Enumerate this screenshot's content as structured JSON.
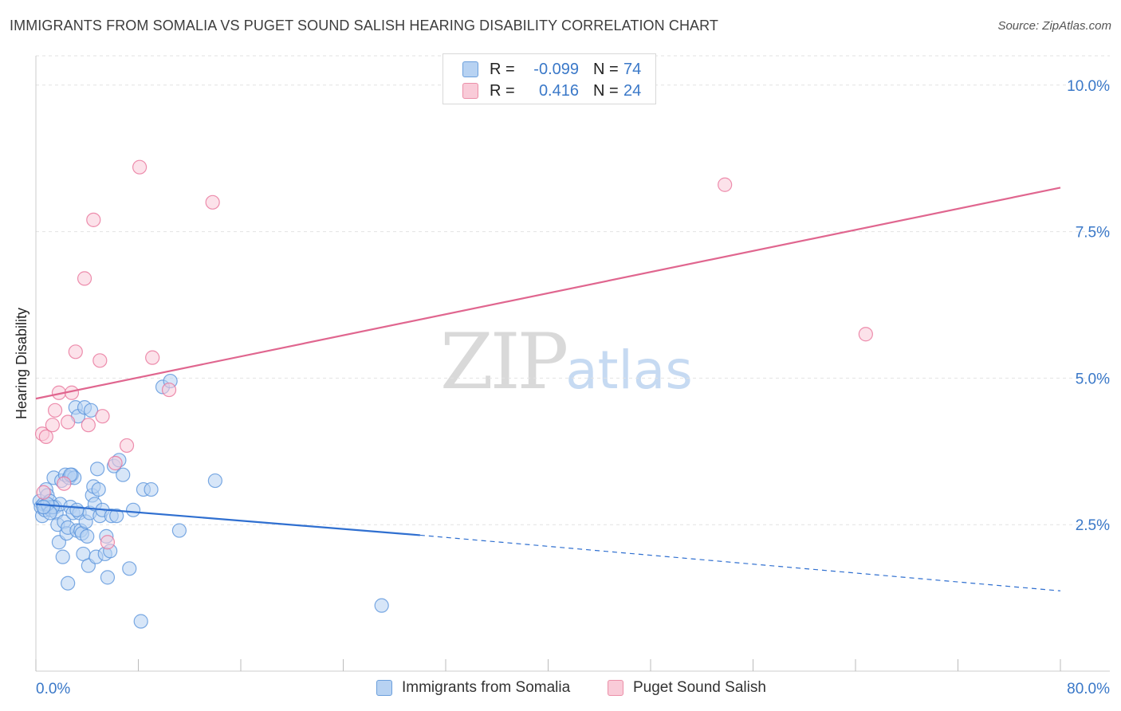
{
  "title": "IMMIGRANTS FROM SOMALIA VS PUGET SOUND SALISH HEARING DISABILITY CORRELATION CHART",
  "source": "Source: ZipAtlas.com",
  "watermark": {
    "zip": "ZIP",
    "atlas": "atlas"
  },
  "legend_top": {
    "rows": [
      {
        "r_label": "R =",
        "r_value": "-0.099",
        "n_label": "N =",
        "n_value": "74"
      },
      {
        "r_label": "R =",
        "r_value": "0.416",
        "n_label": "N =",
        "n_value": "24"
      }
    ]
  },
  "legend_bottom": [
    "Immigrants from Somalia",
    "Puget Sound Salish"
  ],
  "chart_data": {
    "type": "scatter",
    "title": "IMMIGRANTS FROM SOMALIA VS PUGET SOUND SALISH HEARING DISABILITY CORRELATION CHART",
    "xlabel": "",
    "ylabel": "Hearing Disability",
    "xlim": [
      0,
      80
    ],
    "ylim": [
      0,
      10.5
    ],
    "x_tick_labels": [
      "0.0%",
      "80.0%"
    ],
    "y_ticks": [
      2.5,
      5.0,
      7.5,
      10.0
    ],
    "y_tick_labels": [
      "2.5%",
      "5.0%",
      "7.5%",
      "10.0%"
    ],
    "grid": true,
    "legend_position": "top-center",
    "colors": {
      "blue": "#5b95dc",
      "blue_fill": "#b7d2f2",
      "pink": "#e8739a",
      "pink_fill": "#f9cbd8"
    },
    "series": [
      {
        "name": "Immigrants from Somalia",
        "color": "#5b95dc",
        "trend": {
          "x0": 0,
          "y0": 2.85,
          "x1": 30,
          "y1": 2.32,
          "dash_to_x": 80,
          "dash_to_y": 1.37
        },
        "points": [
          [
            0.3,
            2.9
          ],
          [
            0.4,
            2.8
          ],
          [
            0.5,
            2.65
          ],
          [
            0.6,
            2.85
          ],
          [
            0.7,
            2.75
          ],
          [
            0.8,
            3.1
          ],
          [
            0.9,
            3.0
          ],
          [
            1.0,
            2.8
          ],
          [
            1.1,
            2.9
          ],
          [
            1.2,
            2.75
          ],
          [
            1.4,
            3.3
          ],
          [
            1.5,
            2.8
          ],
          [
            1.6,
            2.7
          ],
          [
            1.7,
            2.5
          ],
          [
            1.8,
            2.2
          ],
          [
            1.9,
            2.85
          ],
          [
            2.0,
            3.25
          ],
          [
            2.1,
            1.95
          ],
          [
            2.2,
            2.55
          ],
          [
            2.3,
            3.35
          ],
          [
            2.4,
            2.35
          ],
          [
            2.5,
            2.45
          ],
          [
            2.6,
            3.3
          ],
          [
            2.7,
            2.8
          ],
          [
            2.8,
            3.35
          ],
          [
            2.9,
            2.7
          ],
          [
            3.0,
            3.3
          ],
          [
            3.1,
            4.5
          ],
          [
            3.2,
            2.4
          ],
          [
            3.3,
            4.35
          ],
          [
            3.4,
            2.7
          ],
          [
            3.5,
            2.4
          ],
          [
            3.6,
            2.35
          ],
          [
            3.7,
            2.0
          ],
          [
            3.8,
            4.5
          ],
          [
            3.9,
            2.55
          ],
          [
            4.0,
            2.3
          ],
          [
            4.1,
            1.8
          ],
          [
            4.2,
            2.7
          ],
          [
            4.3,
            4.45
          ],
          [
            4.4,
            3.0
          ],
          [
            4.5,
            3.15
          ],
          [
            4.6,
            2.85
          ],
          [
            4.7,
            1.95
          ],
          [
            4.8,
            3.45
          ],
          [
            4.9,
            3.1
          ],
          [
            5.0,
            2.65
          ],
          [
            5.2,
            2.75
          ],
          [
            5.4,
            2.0
          ],
          [
            5.5,
            2.3
          ],
          [
            5.6,
            1.6
          ],
          [
            5.8,
            2.05
          ],
          [
            5.9,
            2.65
          ],
          [
            6.1,
            3.5
          ],
          [
            6.3,
            2.65
          ],
          [
            6.5,
            3.6
          ],
          [
            6.8,
            3.35
          ],
          [
            7.3,
            1.75
          ],
          [
            7.6,
            2.75
          ],
          [
            8.2,
            0.85
          ],
          [
            8.4,
            3.1
          ],
          [
            9.0,
            3.1
          ],
          [
            9.9,
            4.85
          ],
          [
            10.5,
            4.95
          ],
          [
            11.2,
            2.4
          ],
          [
            14.0,
            3.25
          ],
          [
            27.0,
            1.12
          ],
          [
            2.7,
            3.35
          ],
          [
            1.3,
            2.8
          ],
          [
            0.9,
            2.85
          ],
          [
            1.1,
            2.7
          ],
          [
            0.6,
            2.8
          ],
          [
            2.5,
            1.5
          ],
          [
            3.2,
            2.75
          ]
        ]
      },
      {
        "name": "Puget Sound Salish",
        "color": "#e8739a",
        "trend": {
          "x0": 0,
          "y0": 4.65,
          "x1": 80,
          "y1": 8.25
        },
        "points": [
          [
            0.5,
            4.05
          ],
          [
            0.6,
            3.05
          ],
          [
            0.8,
            4.0
          ],
          [
            1.3,
            4.2
          ],
          [
            1.5,
            4.45
          ],
          [
            1.8,
            4.75
          ],
          [
            2.2,
            3.2
          ],
          [
            2.5,
            4.25
          ],
          [
            2.8,
            4.75
          ],
          [
            3.1,
            5.45
          ],
          [
            3.8,
            6.7
          ],
          [
            4.1,
            4.2
          ],
          [
            4.5,
            7.7
          ],
          [
            5.0,
            5.3
          ],
          [
            5.2,
            4.35
          ],
          [
            5.6,
            2.2
          ],
          [
            6.2,
            3.55
          ],
          [
            7.1,
            3.85
          ],
          [
            8.1,
            8.6
          ],
          [
            9.1,
            5.35
          ],
          [
            10.4,
            4.8
          ],
          [
            13.8,
            8.0
          ],
          [
            53.8,
            8.3
          ],
          [
            64.8,
            5.75
          ]
        ]
      }
    ]
  }
}
